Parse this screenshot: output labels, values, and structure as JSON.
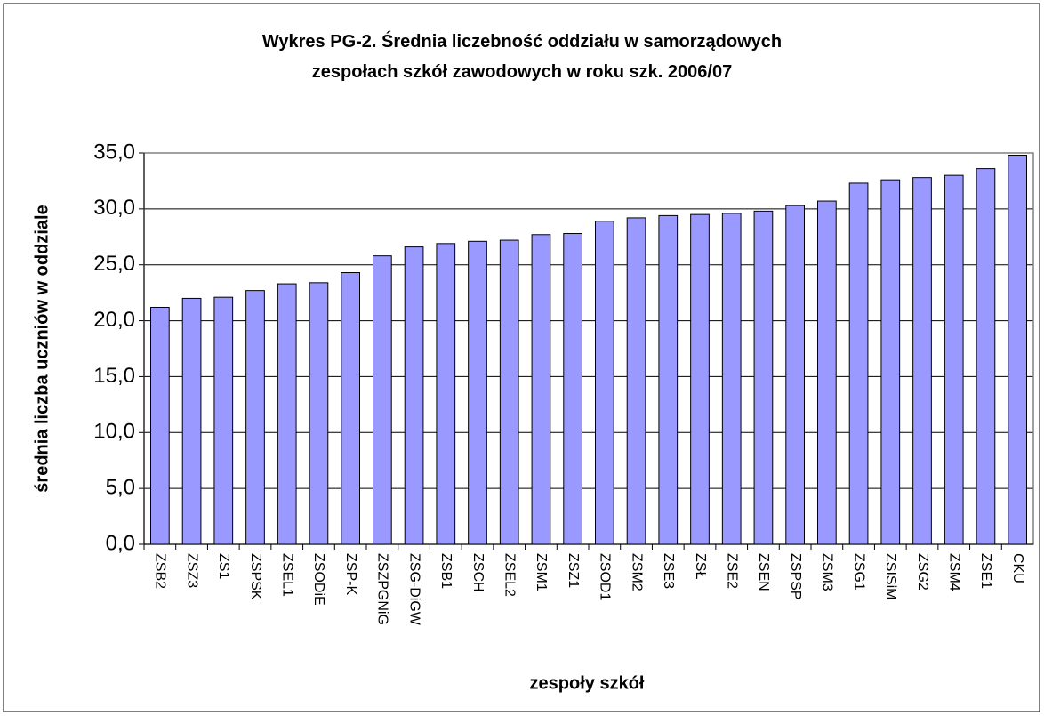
{
  "chart_data": {
    "type": "bar",
    "title": "Wykres PG-2. Średnia liczebność oddziału w samorządowych zespołach szkół zawodowych w roku szk. 2006/07",
    "x_label": "zespoły szkół",
    "y_label": "średnia liczba uczniów w oddziale",
    "categories": [
      "ZSB2",
      "ZSZ3",
      "ZS1",
      "ZSPSK",
      "ZSEL1",
      "ZSODiE",
      "ZSP-K",
      "ZSZPGNiG",
      "ZSG-DiGW",
      "ZSB1",
      "ZSCH",
      "ZSEL2",
      "ZSM1",
      "ZSZ1",
      "ZSOD1",
      "ZSM2",
      "ZSE3",
      "ZSŁ",
      "ZSE2",
      "ZSEN",
      "ZSPSP",
      "ZSM3",
      "ZSG1",
      "ZSISiM",
      "ZSG2",
      "ZSM4",
      "ZSE1",
      "CKU"
    ],
    "values": [
      21.2,
      22.0,
      22.1,
      22.7,
      23.3,
      23.4,
      24.3,
      25.8,
      26.6,
      26.9,
      27.1,
      27.2,
      27.7,
      27.8,
      28.9,
      29.2,
      29.4,
      29.5,
      29.6,
      29.8,
      30.3,
      30.7,
      32.3,
      32.6,
      32.8,
      33.0,
      33.6,
      34.8
    ],
    "color": "#9999ff",
    "ylim": [
      0,
      35
    ],
    "yticks": [
      {
        "value": 0,
        "label": "0,0"
      },
      {
        "value": 5,
        "label": "5,0"
      },
      {
        "value": 10,
        "label": "10,0"
      },
      {
        "value": 15,
        "label": "15,0"
      },
      {
        "value": 20,
        "label": "20,0"
      },
      {
        "value": 25,
        "label": "25,0"
      },
      {
        "value": 30,
        "label": "30,0"
      },
      {
        "value": 35,
        "label": "35,0"
      }
    ],
    "grid": true
  }
}
